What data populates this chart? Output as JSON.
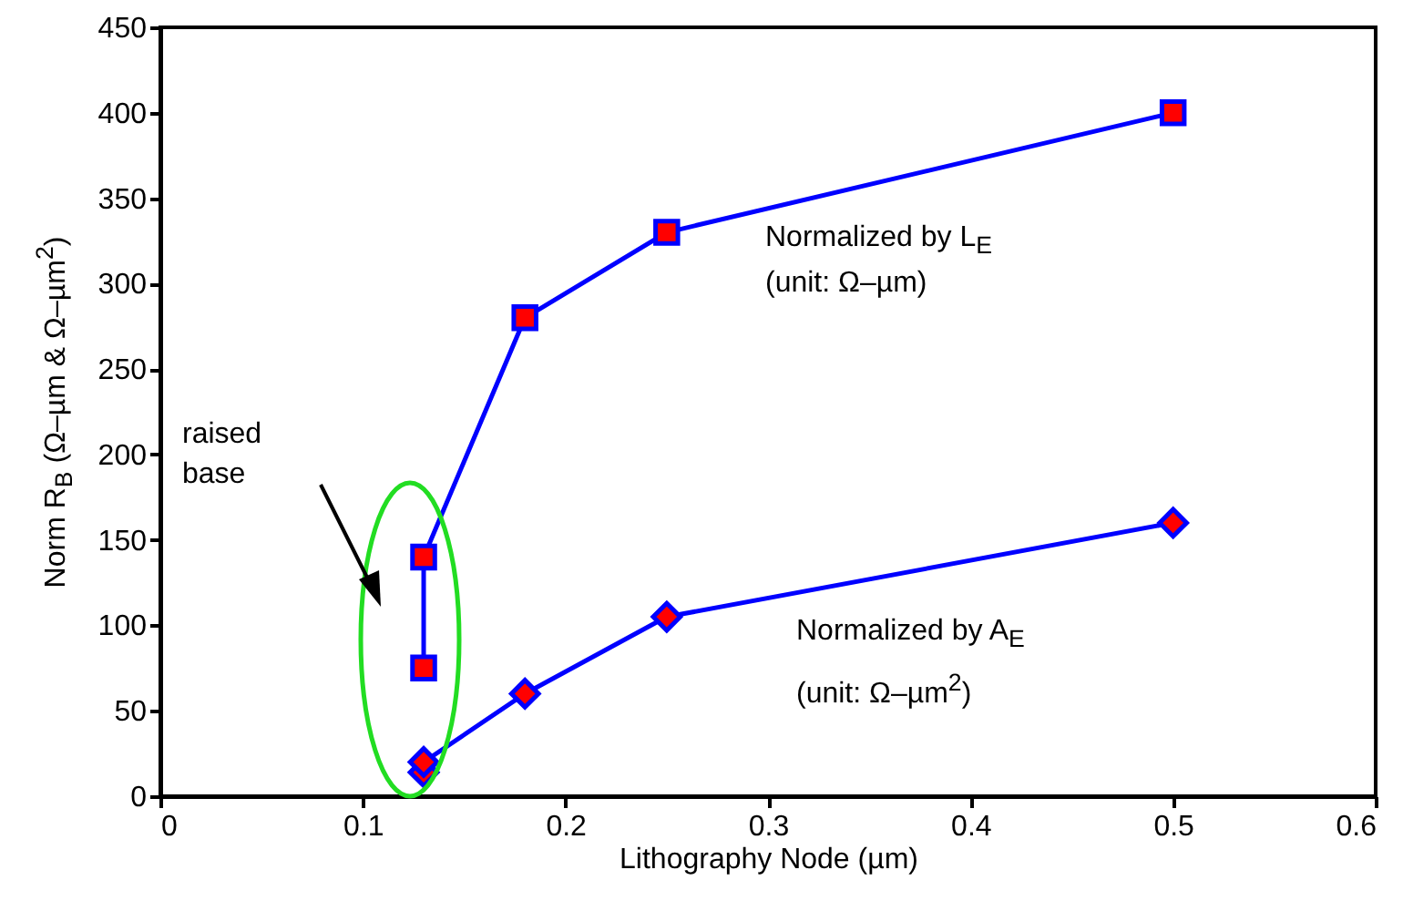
{
  "chart_data": {
    "type": "line",
    "xlabel": "Lithography Node (µm)",
    "ylabel": "Norm R$_{B}$ (Ω–µm & Ω–µm$^{2}$)",
    "xlim": [
      0,
      0.6
    ],
    "xticks": [
      0,
      0.1,
      0.2,
      0.3,
      0.4,
      0.5,
      0.6
    ],
    "ylim": [
      0,
      450
    ],
    "yticks": [
      0,
      50,
      100,
      150,
      200,
      250,
      300,
      350,
      400,
      450
    ],
    "grid": false,
    "line_style": "solid",
    "series": [
      {
        "color": "#0000ff",
        "marker": "square",
        "x": [
          0.13,
          0.13,
          0.18,
          0.25,
          0.5
        ],
        "values": [
          75,
          140,
          280,
          330,
          400
        ]
      },
      {
        "color": "#0000ff",
        "marker": "diamond",
        "x": [
          0.13,
          0.13,
          0.18,
          0.25,
          0.5
        ],
        "values": [
          14,
          20,
          60,
          105,
          160
        ]
      }
    ],
    "annotations": [
      "raised base",
      "Normalized by L$_{E}$",
      "(unit: Ω–µm)",
      "Normalized by A$_{E}$",
      "(unit: Ω–µm$^{2}$)"
    ]
  }
}
